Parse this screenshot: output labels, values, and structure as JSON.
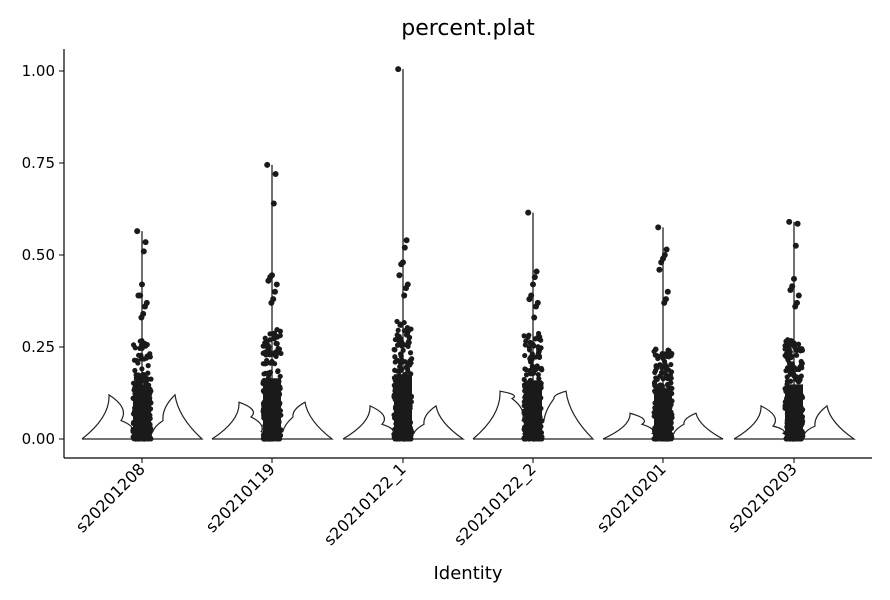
{
  "chart_data": {
    "type": "violin",
    "title": "percent.plat",
    "xlabel": "Identity",
    "ylabel": "",
    "ylim": [
      0,
      1.0
    ],
    "yticks": [
      "0.00",
      "0.25",
      "0.50",
      "0.75",
      "1.00"
    ],
    "categories": [
      "s20201208",
      "s20210119",
      "s20210122_1",
      "s20210122_2",
      "s20210201",
      "s20210203"
    ],
    "max_values": [
      0.565,
      0.745,
      1.005,
      0.615,
      0.575,
      0.59
    ],
    "outliers": [
      [
        0.565,
        0.535,
        0.51,
        0.42,
        0.39,
        0.39,
        0.37,
        0.36,
        0.34,
        0.33
      ],
      [
        0.745,
        0.72,
        0.64,
        0.445,
        0.44,
        0.43,
        0.42,
        0.4,
        0.38,
        0.37
      ],
      [
        1.005,
        0.54,
        0.52,
        0.48,
        0.475,
        0.445,
        0.42,
        0.41,
        0.39
      ],
      [
        0.615,
        0.455,
        0.44,
        0.42,
        0.39,
        0.38,
        0.37,
        0.36,
        0.33
      ],
      [
        0.575,
        0.515,
        0.5,
        0.49,
        0.48,
        0.46,
        0.4,
        0.38,
        0.37
      ],
      [
        0.59,
        0.585,
        0.525,
        0.435,
        0.415,
        0.405,
        0.39,
        0.37,
        0.36
      ]
    ],
    "dense_top": [
      0.27,
      0.3,
      0.32,
      0.29,
      0.25,
      0.27
    ],
    "violin_profiles": [
      [
        0.0,
        0.12,
        0.05,
        0.02,
        0.01,
        0.0
      ],
      [
        0.0,
        0.1,
        0.06,
        0.02,
        0.01,
        0.0
      ],
      [
        0.0,
        0.09,
        0.04,
        0.015,
        0.01,
        0.0
      ],
      [
        0.0,
        0.13,
        0.11,
        0.05,
        0.02,
        0.0
      ],
      [
        0.0,
        0.07,
        0.04,
        0.015,
        0.005,
        0.0
      ],
      [
        0.0,
        0.09,
        0.035,
        0.015,
        0.005,
        0.0
      ]
    ],
    "grid": false,
    "legend": "none"
  }
}
